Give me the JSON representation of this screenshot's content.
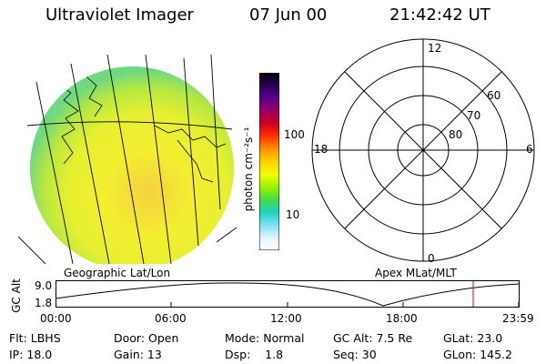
{
  "header": {
    "title": "Ultraviolet Imager",
    "date": "07 Jun 00",
    "time": "21:42:42 UT"
  },
  "colorbar": {
    "label": "photon cm⁻²s⁻¹",
    "ticks": [
      "100",
      "10"
    ],
    "stops": [
      "#000000",
      "#2a0050",
      "#5b0090",
      "#9a0060",
      "#d00020",
      "#ff3000",
      "#ff9000",
      "#ffd000",
      "#f0ff00",
      "#a0f000",
      "#40e040",
      "#20d0c0",
      "#80e0f0",
      "#e0f4ff",
      "#ffffff"
    ]
  },
  "geo_panel": {
    "caption": "Geographic Lat/Lon"
  },
  "polar_plot": {
    "caption": "Apex MLat/MLT",
    "mlt_labels": [
      "12",
      "18",
      "6",
      "0"
    ],
    "mlat_labels": [
      "60",
      "70",
      "80"
    ]
  },
  "altitude_plot": {
    "ylabel": "GC Alt",
    "ymax": "9.0",
    "ymin": "1.8",
    "xticks": [
      "00:00",
      "06:00",
      "12:00",
      "18:00",
      "23:59"
    ],
    "marker_color": "#e00000"
  },
  "info": {
    "filter": "Flt: LBHS",
    "door": "Door: Open",
    "mode": "Mode: Normal",
    "gc_alt": "GC Alt: 7.5 Re",
    "glat": "GLat: 23.0",
    "ip": "IP: 18.0",
    "gain": "Gain: 13",
    "dsp": "Dsp:    1.8",
    "seq": "Seq: 30",
    "glon": "GLon: 145.2"
  }
}
